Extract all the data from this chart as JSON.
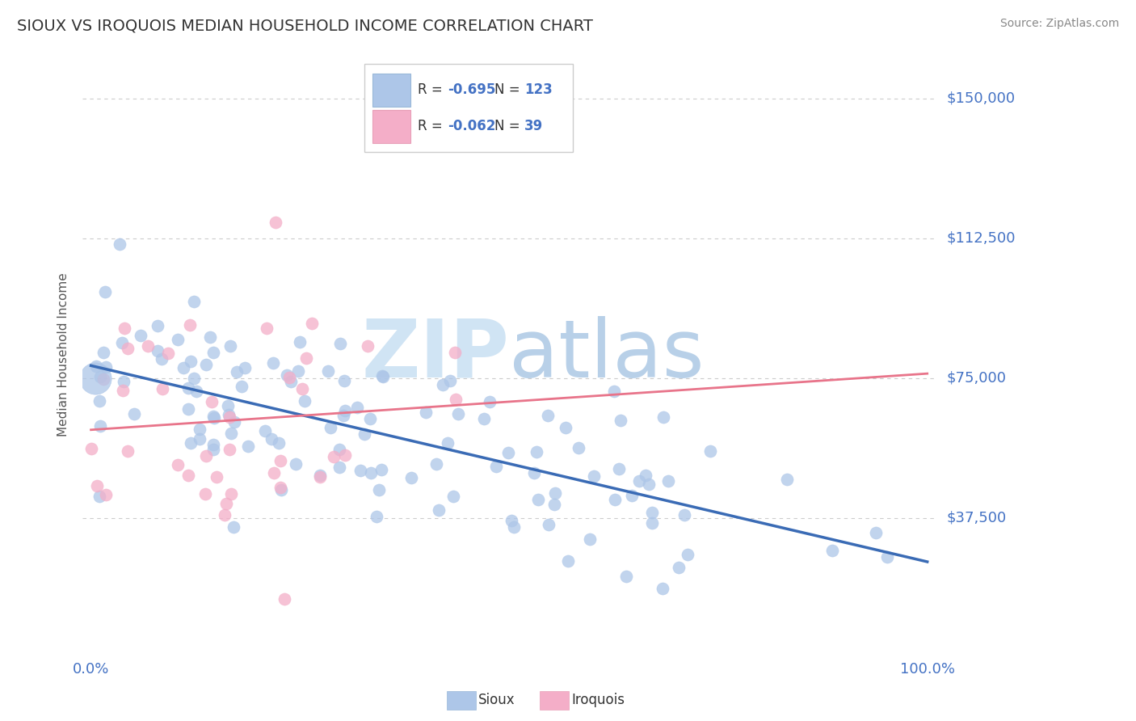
{
  "title": "SIOUX VS IROQUOIS MEDIAN HOUSEHOLD INCOME CORRELATION CHART",
  "source": "Source: ZipAtlas.com",
  "ylabel": "Median Household Income",
  "xlim": [
    -0.01,
    1.01
  ],
  "ylim": [
    0,
    162500
  ],
  "yticks": [
    37500,
    75000,
    112500,
    150000
  ],
  "ytick_labels": [
    "$37,500",
    "$75,000",
    "$112,500",
    "$150,000"
  ],
  "xtick_labels": [
    "0.0%",
    "100.0%"
  ],
  "sioux_R": -0.695,
  "sioux_N": 123,
  "iroquois_R": -0.062,
  "iroquois_N": 39,
  "sioux_color": "#adc6e8",
  "sioux_edge_color": "#adc6e8",
  "iroquois_color": "#f4aec8",
  "iroquois_edge_color": "#f4aec8",
  "sioux_line_color": "#3a6bb5",
  "iroquois_line_color": "#e8748a",
  "background_color": "#ffffff",
  "grid_color": "#cccccc",
  "title_color": "#333333",
  "axis_label_color": "#555555",
  "tick_label_color": "#4472c4",
  "source_color": "#888888",
  "watermark_color": "#d0e4f4",
  "legend_edge_color": "#cccccc"
}
